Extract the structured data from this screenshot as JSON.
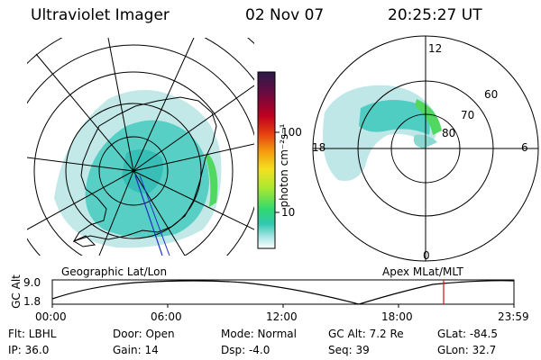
{
  "header": {
    "instrument": "Ultraviolet Imager",
    "date": "02 Nov 07",
    "time": "20:25:27 UT"
  },
  "colorbar": {
    "unit_label": "photon cm⁻²s⁻¹",
    "ticks": [
      "100",
      "10"
    ],
    "stops": [
      "#2a1a4a",
      "#6a0a40",
      "#c00020",
      "#e64010",
      "#f59a10",
      "#f4e020",
      "#a8e830",
      "#30d870",
      "#30c8b0",
      "#b0e8e8",
      "#ffffff"
    ]
  },
  "maps": {
    "left_caption": "Geographic Lat/Lon",
    "right_caption": "Apex MLat/MLT",
    "mlt_labels": [
      "12",
      "18",
      "6",
      "0"
    ],
    "mlat_labels": [
      "60",
      "70",
      "80"
    ]
  },
  "altitude_plot": {
    "ylabel": "GC Alt",
    "yticks": [
      "9.0",
      "1.8"
    ],
    "xticks": [
      "00:00",
      "06:00",
      "12:00",
      "18:00",
      "23:59"
    ],
    "marker_time": "20:25"
  },
  "footer": {
    "flt": "Flt: LBHL",
    "ip": "IP: 36.0",
    "door": "Door: Open",
    "gain": "Gain: 14",
    "mode": "Mode: Normal",
    "dsp": "Dsp:   -4.0",
    "gcalt": "GC Alt: 7.2 Re",
    "seq": "Seq: 39",
    "glat": "GLat:  -84.5",
    "glon": "GLon:  32.7"
  }
}
